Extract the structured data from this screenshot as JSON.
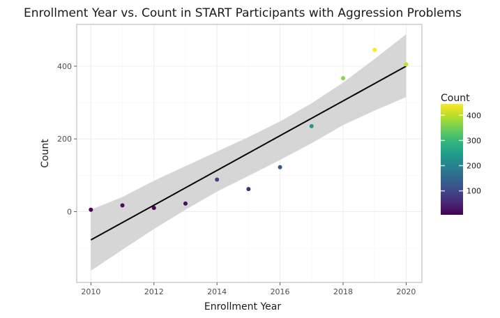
{
  "chart_data": {
    "type": "scatter",
    "title": "Enrollment Year vs. Count in START Participants with Aggression Problems",
    "xlabel": "Enrollment Year",
    "ylabel": "Count",
    "xlim": [
      2009.55,
      2020.5
    ],
    "ylim": [
      -195,
      515
    ],
    "x_ticks": [
      2010,
      2012,
      2014,
      2016,
      2018,
      2020
    ],
    "y_ticks": [
      0,
      200,
      400
    ],
    "grid": true,
    "points": [
      {
        "x": 2010,
        "y": 5
      },
      {
        "x": 2011,
        "y": 17
      },
      {
        "x": 2012,
        "y": 10
      },
      {
        "x": 2013,
        "y": 22
      },
      {
        "x": 2014,
        "y": 88
      },
      {
        "x": 2015,
        "y": 62
      },
      {
        "x": 2016,
        "y": 122
      },
      {
        "x": 2017,
        "y": 235
      },
      {
        "x": 2018,
        "y": 367
      },
      {
        "x": 2019,
        "y": 445
      },
      {
        "x": 2020,
        "y": 405
      }
    ],
    "fit_line": {
      "x": [
        2010,
        2020
      ],
      "y": [
        -78,
        400
      ]
    },
    "confidence_band": {
      "x": [
        2010,
        2011,
        2012,
        2013,
        2014,
        2015,
        2016,
        2017,
        2018,
        2019,
        2020
      ],
      "lower": [
        -163,
        -105,
        -48,
        5,
        55,
        98,
        142,
        188,
        238,
        278,
        315
      ],
      "upper": [
        5,
        40,
        85,
        125,
        165,
        205,
        248,
        298,
        355,
        420,
        488
      ]
    },
    "legend": {
      "title": "Count",
      "position": "right",
      "ticks": [
        100,
        200,
        300,
        400
      ],
      "min": 5,
      "max": 445
    },
    "colors": {
      "fit_line": "#000000",
      "band": "#d4d4d4",
      "grid": "#ebebeb",
      "panel_border": "#b3b3b3",
      "viridis": [
        "#440154",
        "#482878",
        "#3e4a89",
        "#31688e",
        "#26828e",
        "#1f9e89",
        "#35b779",
        "#6ece58",
        "#b5de2b",
        "#fde725"
      ]
    }
  }
}
